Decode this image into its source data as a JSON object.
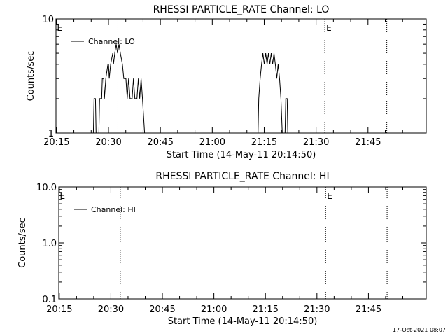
{
  "footer": {
    "stamp": "17-Oct-2021 08:07"
  },
  "chart_data": [
    {
      "type": "line",
      "title": "RHESSI PARTICLE_RATE Channel: LO",
      "xlabel": "Start Time (14-May-11 20:14:50)",
      "ylabel": "Counts/sec",
      "yscale": "log",
      "ylim": [
        1,
        10
      ],
      "xlim_min": [
        0,
        107
      ],
      "x_ticks": [
        {
          "min": 0.17,
          "label": "20:15"
        },
        {
          "min": 15.17,
          "label": "20:30"
        },
        {
          "min": 30.17,
          "label": "20:45"
        },
        {
          "min": 45.17,
          "label": "21:00"
        },
        {
          "min": 60.17,
          "label": "21:15"
        },
        {
          "min": 75.17,
          "label": "21:30"
        },
        {
          "min": 90.17,
          "label": "21:45"
        }
      ],
      "y_ticks": [
        {
          "v": 1,
          "label": "1"
        },
        {
          "v": 10,
          "label": "10"
        }
      ],
      "vlines_min": [
        17.9,
        77.7,
        95.6
      ],
      "markers": [
        {
          "min": 0.1,
          "label": "E"
        },
        {
          "min": 77.9,
          "label": "E"
        }
      ],
      "legend": {
        "position": "top-left",
        "label": "Channel: LO"
      },
      "series": [
        {
          "name": "Channel: LO",
          "points": [
            [
              10.8,
              0.9
            ],
            [
              11.0,
              2.0
            ],
            [
              11.4,
              2.0
            ],
            [
              11.6,
              0.9
            ],
            [
              12.4,
              0.9
            ],
            [
              12.6,
              2.0
            ],
            [
              13.2,
              2.0
            ],
            [
              13.4,
              3.0
            ],
            [
              13.8,
              3.0
            ],
            [
              14.0,
              2.0
            ],
            [
              14.4,
              3.0
            ],
            [
              15.0,
              4.0
            ],
            [
              15.2,
              4.0
            ],
            [
              15.4,
              3.0
            ],
            [
              15.8,
              4.0
            ],
            [
              16.4,
              5.0
            ],
            [
              16.6,
              4.0
            ],
            [
              17.0,
              5.0
            ],
            [
              17.4,
              6.0
            ],
            [
              17.8,
              5.0
            ],
            [
              18.2,
              6.0
            ],
            [
              18.6,
              5.0
            ],
            [
              19.2,
              4.0
            ],
            [
              19.6,
              3.0
            ],
            [
              20.2,
              3.0
            ],
            [
              20.6,
              2.0
            ],
            [
              21.0,
              3.0
            ],
            [
              21.4,
              2.0
            ],
            [
              22.0,
              2.0
            ],
            [
              22.4,
              3.0
            ],
            [
              22.8,
              2.0
            ],
            [
              23.4,
              2.0
            ],
            [
              23.8,
              3.0
            ],
            [
              24.2,
              2.0
            ],
            [
              24.6,
              3.0
            ],
            [
              25.0,
              2.0
            ],
            [
              25.6,
              1.0
            ],
            [
              25.8,
              0.9
            ],
            [
              58.4,
              0.9
            ],
            [
              58.6,
              2.0
            ],
            [
              59.0,
              3.0
            ],
            [
              59.4,
              4.0
            ],
            [
              59.8,
              5.0
            ],
            [
              60.2,
              4.0
            ],
            [
              60.6,
              5.0
            ],
            [
              61.0,
              4.0
            ],
            [
              61.4,
              5.0
            ],
            [
              61.8,
              4.0
            ],
            [
              62.2,
              5.0
            ],
            [
              62.6,
              4.0
            ],
            [
              63.0,
              5.0
            ],
            [
              63.4,
              4.0
            ],
            [
              63.8,
              3.0
            ],
            [
              64.2,
              4.0
            ],
            [
              64.6,
              3.0
            ],
            [
              65.0,
              2.0
            ],
            [
              65.4,
              1.0
            ],
            [
              65.6,
              0.9
            ],
            [
              66.2,
              0.9
            ],
            [
              66.4,
              2.0
            ],
            [
              66.8,
              2.0
            ],
            [
              67.0,
              0.9
            ]
          ]
        }
      ]
    },
    {
      "type": "line",
      "title": "RHESSI PARTICLE_RATE Channel: HI",
      "xlabel": "Start Time (14-May-11 20:14:50)",
      "ylabel": "Counts/sec",
      "yscale": "log",
      "ylim": [
        0.1,
        10
      ],
      "xlim_min": [
        0,
        107
      ],
      "x_ticks": [
        {
          "min": 0.17,
          "label": "20:15"
        },
        {
          "min": 15.17,
          "label": "20:30"
        },
        {
          "min": 30.17,
          "label": "20:45"
        },
        {
          "min": 45.17,
          "label": "21:00"
        },
        {
          "min": 60.17,
          "label": "21:15"
        },
        {
          "min": 75.17,
          "label": "21:30"
        },
        {
          "min": 90.17,
          "label": "21:45"
        }
      ],
      "y_ticks": [
        {
          "v": 0.1,
          "label": "0.1"
        },
        {
          "v": 1,
          "label": "1.0"
        },
        {
          "v": 10,
          "label": "10.0"
        }
      ],
      "vlines_min": [
        17.9,
        77.7,
        95.6
      ],
      "markers": [
        {
          "min": 0.1,
          "label": "E"
        },
        {
          "min": 77.9,
          "label": "E"
        }
      ],
      "legend": {
        "position": "top-left",
        "label": "Channel: HI"
      },
      "series": [
        {
          "name": "Channel: HI",
          "points": []
        }
      ]
    }
  ]
}
